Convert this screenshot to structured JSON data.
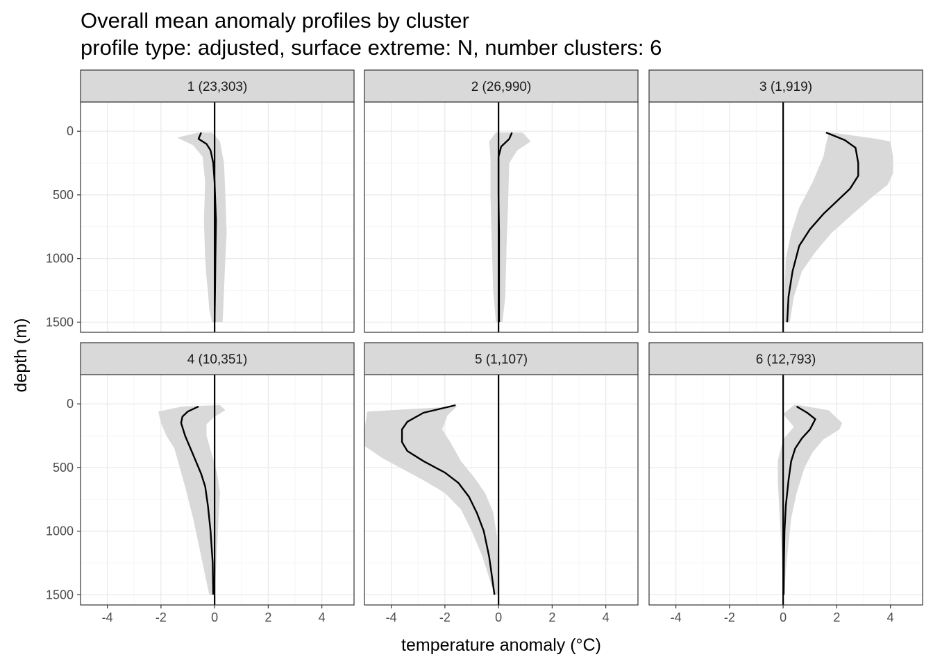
{
  "chart_data": {
    "type": "line",
    "title": "Overall mean anomaly profiles by cluster",
    "subtitle": "profile type: adjusted, surface extreme: N, number clusters: 6",
    "xlabel": "temperature anomaly (°C)",
    "ylabel": "depth (m)",
    "xlim": [
      -5,
      5.2
    ],
    "ylim": [
      1580,
      -230
    ],
    "x_ticks": [
      -4,
      -2,
      0,
      2,
      4
    ],
    "x_tick_labels": [
      "-4",
      "-2",
      "0",
      "2",
      "4"
    ],
    "y_ticks": [
      0,
      500,
      1000,
      1500
    ],
    "y_tick_labels": [
      "0",
      "500",
      "1000",
      "1500"
    ],
    "grid": true,
    "reference_line_x": 0,
    "colors": {
      "mean_line": "#000000",
      "band": "#d9d9d9",
      "strip": "#d9d9d9",
      "grid_major": "#ebebeb",
      "grid_minor": "#f5f5f5",
      "border": "#333333"
    },
    "panels": [
      {
        "label": "1 (23,303)",
        "mean": [
          [
            -0.5,
            10
          ],
          [
            -0.6,
            60
          ],
          [
            -0.3,
            100
          ],
          [
            -0.15,
            150
          ],
          [
            -0.05,
            250
          ],
          [
            0.0,
            400
          ],
          [
            0.05,
            700
          ],
          [
            0.03,
            1000
          ],
          [
            0.02,
            1200
          ],
          [
            0.0,
            1500
          ]
        ],
        "band_lower": [
          [
            -0.6,
            10
          ],
          [
            -1.4,
            50
          ],
          [
            -0.8,
            110
          ],
          [
            -0.45,
            200
          ],
          [
            -0.35,
            400
          ],
          [
            -0.4,
            700
          ],
          [
            -0.35,
            1000
          ],
          [
            -0.3,
            1150
          ],
          [
            -0.25,
            1250
          ],
          [
            -0.2,
            1400
          ],
          [
            -0.1,
            1500
          ]
        ],
        "band_upper": [
          [
            -0.1,
            10
          ],
          [
            0.2,
            80
          ],
          [
            0.35,
            250
          ],
          [
            0.4,
            500
          ],
          [
            0.45,
            800
          ],
          [
            0.4,
            1000
          ],
          [
            0.35,
            1250
          ],
          [
            0.3,
            1500
          ]
        ]
      },
      {
        "label": "2 (26,990)",
        "mean": [
          [
            0.5,
            10
          ],
          [
            0.4,
            60
          ],
          [
            0.1,
            120
          ],
          [
            0.0,
            200
          ],
          [
            0.0,
            300
          ],
          [
            0.0,
            500
          ],
          [
            0.02,
            800
          ],
          [
            0.02,
            1100
          ],
          [
            0.02,
            1500
          ]
        ],
        "band_lower": [
          [
            -0.1,
            10
          ],
          [
            -0.35,
            80
          ],
          [
            -0.3,
            200
          ],
          [
            -0.3,
            500
          ],
          [
            -0.25,
            900
          ],
          [
            -0.2,
            1250
          ],
          [
            -0.1,
            1500
          ]
        ],
        "band_upper": [
          [
            0.9,
            10
          ],
          [
            1.2,
            80
          ],
          [
            0.7,
            150
          ],
          [
            0.4,
            250
          ],
          [
            0.35,
            600
          ],
          [
            0.3,
            900
          ],
          [
            0.25,
            1300
          ],
          [
            0.15,
            1500
          ]
        ]
      },
      {
        "label": "3 (1,919)",
        "mean": [
          [
            1.6,
            10
          ],
          [
            2.3,
            70
          ],
          [
            2.7,
            130
          ],
          [
            2.8,
            250
          ],
          [
            2.8,
            350
          ],
          [
            2.5,
            450
          ],
          [
            2.0,
            550
          ],
          [
            1.5,
            650
          ],
          [
            1.0,
            770
          ],
          [
            0.6,
            900
          ],
          [
            0.35,
            1100
          ],
          [
            0.2,
            1300
          ],
          [
            0.15,
            1500
          ]
        ],
        "band_lower": [
          [
            1.7,
            20
          ],
          [
            1.6,
            100
          ],
          [
            1.5,
            200
          ],
          [
            1.1,
            400
          ],
          [
            0.6,
            600
          ],
          [
            0.3,
            800
          ],
          [
            0.1,
            1000
          ],
          [
            0.05,
            1300
          ],
          [
            0.05,
            1500
          ]
        ],
        "band_upper": [
          [
            1.8,
            10
          ],
          [
            3.5,
            60
          ],
          [
            4.0,
            80
          ],
          [
            4.1,
            200
          ],
          [
            4.1,
            330
          ],
          [
            3.9,
            420
          ],
          [
            3.3,
            520
          ],
          [
            2.6,
            650
          ],
          [
            1.8,
            800
          ],
          [
            1.2,
            950
          ],
          [
            0.7,
            1100
          ],
          [
            0.4,
            1300
          ],
          [
            0.25,
            1500
          ]
        ]
      },
      {
        "label": "4 (10,351)",
        "mean": [
          [
            -0.6,
            20
          ],
          [
            -1.0,
            60
          ],
          [
            -1.2,
            100
          ],
          [
            -1.25,
            150
          ],
          [
            -1.1,
            250
          ],
          [
            -0.9,
            350
          ],
          [
            -0.7,
            450
          ],
          [
            -0.5,
            550
          ],
          [
            -0.35,
            650
          ],
          [
            -0.25,
            800
          ],
          [
            -0.15,
            1000
          ],
          [
            -0.07,
            1250
          ],
          [
            -0.05,
            1500
          ]
        ],
        "band_lower": [
          [
            -1.2,
            20
          ],
          [
            -2.1,
            60
          ],
          [
            -2.0,
            150
          ],
          [
            -1.8,
            250
          ],
          [
            -1.5,
            350
          ],
          [
            -1.3,
            500
          ],
          [
            -1.1,
            650
          ],
          [
            -0.8,
            900
          ],
          [
            -0.6,
            1100
          ],
          [
            -0.4,
            1300
          ],
          [
            -0.2,
            1500
          ]
        ],
        "band_upper": [
          [
            0.2,
            10
          ],
          [
            0.4,
            50
          ],
          [
            0.0,
            100
          ],
          [
            -0.3,
            160
          ],
          [
            -0.3,
            250
          ],
          [
            -0.1,
            400
          ],
          [
            0.1,
            550
          ],
          [
            0.2,
            700
          ],
          [
            0.15,
            900
          ],
          [
            0.1,
            1100
          ],
          [
            0.05,
            1300
          ],
          [
            0.0,
            1500
          ]
        ]
      },
      {
        "label": "5 (1,107)",
        "mean": [
          [
            -1.6,
            10
          ],
          [
            -2.8,
            70
          ],
          [
            -3.4,
            140
          ],
          [
            -3.6,
            200
          ],
          [
            -3.6,
            300
          ],
          [
            -3.4,
            370
          ],
          [
            -2.8,
            450
          ],
          [
            -2.0,
            540
          ],
          [
            -1.5,
            620
          ],
          [
            -1.1,
            730
          ],
          [
            -0.8,
            860
          ],
          [
            -0.55,
            1000
          ],
          [
            -0.35,
            1200
          ],
          [
            -0.25,
            1350
          ],
          [
            -0.15,
            1500
          ]
        ],
        "band_lower": [
          [
            -1.6,
            20
          ],
          [
            -4.9,
            60
          ],
          [
            -5.0,
            200
          ],
          [
            -5.0,
            330
          ],
          [
            -4.3,
            430
          ],
          [
            -3.5,
            520
          ],
          [
            -2.8,
            600
          ],
          [
            -2.0,
            700
          ],
          [
            -1.4,
            830
          ],
          [
            -1.0,
            1000
          ],
          [
            -0.6,
            1200
          ],
          [
            -0.3,
            1400
          ],
          [
            -0.15,
            1500
          ]
        ],
        "band_upper": [
          [
            -1.5,
            10
          ],
          [
            -1.9,
            90
          ],
          [
            -2.1,
            200
          ],
          [
            -1.8,
            300
          ],
          [
            -1.4,
            450
          ],
          [
            -0.9,
            580
          ],
          [
            -0.5,
            700
          ],
          [
            -0.2,
            850
          ],
          [
            -0.05,
            1050
          ],
          [
            -0.02,
            1300
          ],
          [
            -0.02,
            1500
          ]
        ]
      },
      {
        "label": "6 (12,793)",
        "mean": [
          [
            0.5,
            20
          ],
          [
            0.9,
            70
          ],
          [
            1.2,
            120
          ],
          [
            1.0,
            200
          ],
          [
            0.7,
            270
          ],
          [
            0.45,
            350
          ],
          [
            0.3,
            450
          ],
          [
            0.2,
            600
          ],
          [
            0.1,
            800
          ],
          [
            0.05,
            1000
          ],
          [
            0.03,
            1250
          ],
          [
            0.02,
            1500
          ]
        ],
        "band_lower": [
          [
            0.4,
            10
          ],
          [
            0.0,
            80
          ],
          [
            0.4,
            180
          ],
          [
            0.0,
            280
          ],
          [
            -0.2,
            450
          ],
          [
            -0.2,
            600
          ],
          [
            -0.15,
            800
          ],
          [
            -0.1,
            1000
          ],
          [
            -0.05,
            1200
          ],
          [
            0.0,
            1500
          ]
        ],
        "band_upper": [
          [
            0.6,
            10
          ],
          [
            1.7,
            50
          ],
          [
            2.2,
            150
          ],
          [
            2.1,
            200
          ],
          [
            1.5,
            280
          ],
          [
            1.1,
            380
          ],
          [
            0.8,
            500
          ],
          [
            0.5,
            700
          ],
          [
            0.3,
            900
          ],
          [
            0.2,
            1100
          ],
          [
            0.1,
            1300
          ],
          [
            0.05,
            1500
          ]
        ]
      }
    ]
  }
}
